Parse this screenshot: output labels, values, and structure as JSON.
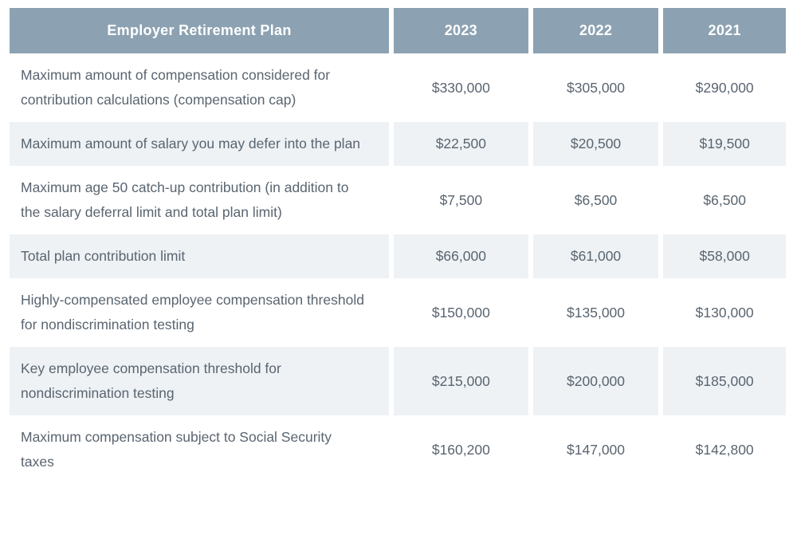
{
  "colors": {
    "header_bg": "#8ca2b2",
    "row_alt_bg": "#eef2f5",
    "body_text": "#5a6570",
    "header_text": "#ffffff"
  },
  "table": {
    "header": {
      "plan_column": "Employer Retirement Plan",
      "years": [
        "2023",
        "2022",
        "2021"
      ]
    },
    "rows": [
      {
        "label": "Maximum amount of compensation considered for contribution calculations (compensation cap)",
        "values": [
          "$330,000",
          "$305,000",
          "$290,000"
        ]
      },
      {
        "label": "Maximum amount of salary you may defer into the plan",
        "values": [
          "$22,500",
          "$20,500",
          "$19,500"
        ]
      },
      {
        "label": "Maximum age 50 catch-up contribution (in addition to the salary deferral limit and total plan limit)",
        "values": [
          "$7,500",
          "$6,500",
          "$6,500"
        ]
      },
      {
        "label": "Total plan contribution limit",
        "values": [
          "$66,000",
          "$61,000",
          "$58,000"
        ]
      },
      {
        "label": "Highly-compensated employee compensation threshold for nondiscrimination testing",
        "values": [
          "$150,000",
          "$135,000",
          "$130,000"
        ]
      },
      {
        "label": "Key employee compensation threshold for nondiscrimination testing",
        "values": [
          "$215,000",
          "$200,000",
          "$185,000"
        ]
      },
      {
        "label": "Maximum compensation subject to Social Security taxes",
        "values": [
          "$160,200",
          "$147,000",
          "$142,800"
        ]
      }
    ]
  }
}
